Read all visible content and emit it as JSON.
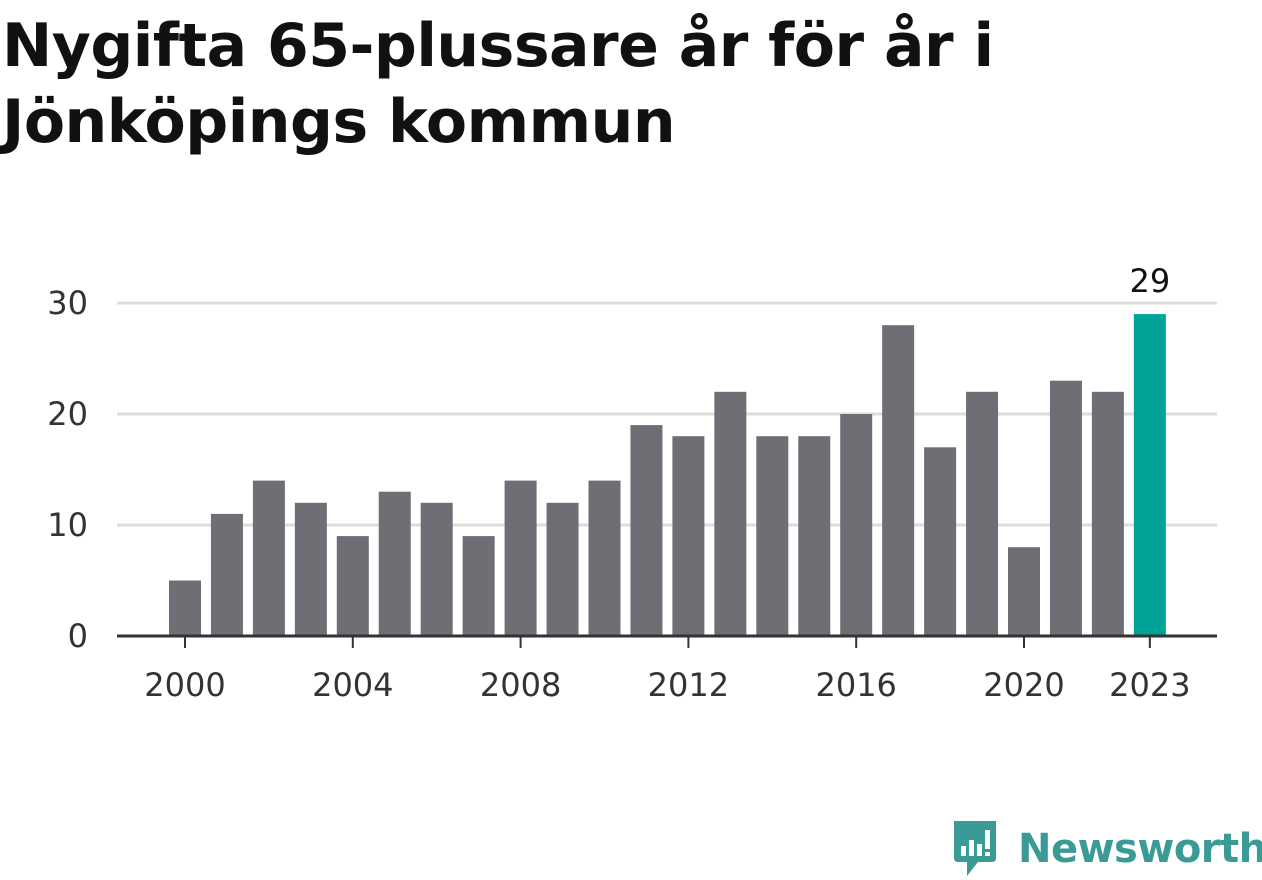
{
  "chart_data": {
    "type": "bar",
    "title": "Nygifta 65-plussare år för år i Jönköpings kommun",
    "categories": [
      "2000",
      "2001",
      "2002",
      "2003",
      "2004",
      "2005",
      "2006",
      "2007",
      "2008",
      "2009",
      "2010",
      "2011",
      "2012",
      "2013",
      "2014",
      "2015",
      "2016",
      "2017",
      "2018",
      "2019",
      "2020",
      "2021",
      "2022",
      "2023"
    ],
    "values": [
      5,
      11,
      14,
      12,
      9,
      13,
      12,
      9,
      14,
      12,
      14,
      19,
      18,
      22,
      18,
      18,
      20,
      28,
      17,
      22,
      8,
      23,
      22,
      29
    ],
    "x_tick_labels": [
      "2000",
      "2004",
      "2008",
      "2012",
      "2016",
      "2020",
      "2023"
    ],
    "y_ticks": [
      0,
      10,
      20,
      30
    ],
    "ylim": [
      0,
      30
    ],
    "grid": true,
    "highlight": {
      "category": "2023",
      "label": "29"
    },
    "colors": {
      "bar": "#6f6e75",
      "highlight": "#00a398",
      "grid": "#dddddd",
      "axis": "#333333"
    }
  },
  "brand": {
    "name": "Newsworthy",
    "icon": "newsworthy-logo-icon",
    "color": "#3a9a96"
  }
}
